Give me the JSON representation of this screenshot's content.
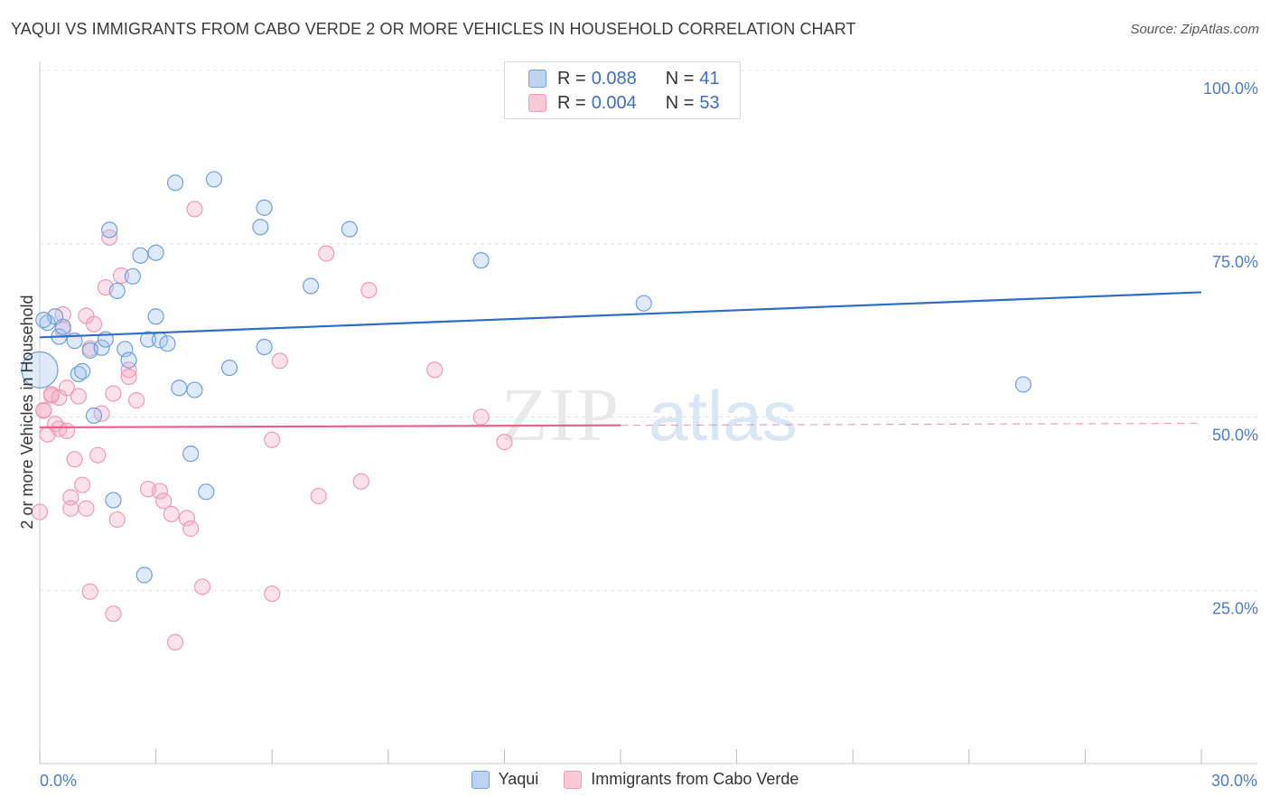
{
  "title": "YAQUI VS IMMIGRANTS FROM CABO VERDE 2 OR MORE VEHICLES IN HOUSEHOLD CORRELATION CHART",
  "source": "Source: ZipAtlas.com",
  "watermark": {
    "zip": "ZIP",
    "atlas": "atlas"
  },
  "legend": {
    "rows": [
      {
        "r_label": "R =",
        "r_value": "0.088",
        "n_label": "N =",
        "n_value": "41"
      },
      {
        "r_label": "R =",
        "r_value": "0.004",
        "n_label": "N =",
        "n_value": "53"
      }
    ]
  },
  "bottom_legend": [
    "Yaqui",
    "Immigrants from Cabo Verde"
  ],
  "chart_data": {
    "type": "scatter",
    "title": "YAQUI VS IMMIGRANTS FROM CABO VERDE 2 OR MORE VEHICLES IN HOUSEHOLD CORRELATION CHART",
    "xlabel": "",
    "ylabel": "2 or more Vehicles in Household",
    "xlim": [
      0,
      30
    ],
    "ylim": [
      0,
      100
    ],
    "x_tick_labels": [
      "0.0%",
      "30.0%"
    ],
    "y_ticks": [
      25,
      50,
      75,
      100
    ],
    "y_tick_labels": [
      "25.0%",
      "50.0%",
      "75.0%",
      "100.0%"
    ],
    "grid": "horizontal dashed",
    "legend_position": "top-center",
    "colors": {
      "yaqui": "#6f9fdc",
      "cabo_verde": "#f09ab5",
      "yaqui_line": "#2f6cc4",
      "cabo_line": "#e8628a"
    },
    "series": [
      {
        "name": "Yaqui",
        "r": 0.088,
        "n": 41,
        "trend": {
          "x": [
            0,
            30
          ],
          "y": [
            61.5,
            68.0
          ]
        },
        "points": [
          [
            0.0,
            56.8
          ],
          [
            0.2,
            63.6
          ],
          [
            0.4,
            64.5
          ],
          [
            0.5,
            61.6
          ],
          [
            0.6,
            63.0
          ],
          [
            0.9,
            61.0
          ],
          [
            1.0,
            56.2
          ],
          [
            1.1,
            56.6
          ],
          [
            1.3,
            59.6
          ],
          [
            1.4,
            50.2
          ],
          [
            1.6,
            60.0
          ],
          [
            1.7,
            61.2
          ],
          [
            1.8,
            77.0
          ],
          [
            1.9,
            38.0
          ],
          [
            2.0,
            68.2
          ],
          [
            2.2,
            59.8
          ],
          [
            2.3,
            58.2
          ],
          [
            2.4,
            70.3
          ],
          [
            2.6,
            73.3
          ],
          [
            2.7,
            27.2
          ],
          [
            2.8,
            61.2
          ],
          [
            3.0,
            64.5
          ],
          [
            3.0,
            73.7
          ],
          [
            3.1,
            61.1
          ],
          [
            3.3,
            60.6
          ],
          [
            3.5,
            83.8
          ],
          [
            3.6,
            54.2
          ],
          [
            3.9,
            44.7
          ],
          [
            4.0,
            53.9
          ],
          [
            4.3,
            39.2
          ],
          [
            4.5,
            84.3
          ],
          [
            4.9,
            57.1
          ],
          [
            5.7,
            77.4
          ],
          [
            5.8,
            80.2
          ],
          [
            5.8,
            60.1
          ],
          [
            7.0,
            68.9
          ],
          [
            8.0,
            77.1
          ],
          [
            11.4,
            72.6
          ],
          [
            15.6,
            66.4
          ],
          [
            25.4,
            54.7
          ],
          [
            0.1,
            64.0
          ]
        ]
      },
      {
        "name": "Immigrants from Cabo Verde",
        "r": 0.004,
        "n": 53,
        "trend": {
          "x": [
            0,
            15
          ],
          "y": [
            48.5,
            48.8
          ]
        },
        "points": [
          [
            0.0,
            36.3
          ],
          [
            0.1,
            50.9
          ],
          [
            0.2,
            47.5
          ],
          [
            0.3,
            53.1
          ],
          [
            0.3,
            53.3
          ],
          [
            0.4,
            49.0
          ],
          [
            0.5,
            52.8
          ],
          [
            0.5,
            48.3
          ],
          [
            0.6,
            64.8
          ],
          [
            0.6,
            62.6
          ],
          [
            0.7,
            48.0
          ],
          [
            0.7,
            54.2
          ],
          [
            0.8,
            38.4
          ],
          [
            0.8,
            36.8
          ],
          [
            0.9,
            43.9
          ],
          [
            1.0,
            53.0
          ],
          [
            1.1,
            40.2
          ],
          [
            1.2,
            36.8
          ],
          [
            1.2,
            64.6
          ],
          [
            1.3,
            59.9
          ],
          [
            1.3,
            24.8
          ],
          [
            1.4,
            63.4
          ],
          [
            1.5,
            44.5
          ],
          [
            1.6,
            50.5
          ],
          [
            1.7,
            68.7
          ],
          [
            1.8,
            75.9
          ],
          [
            1.9,
            53.4
          ],
          [
            1.9,
            21.6
          ],
          [
            2.0,
            35.2
          ],
          [
            2.1,
            70.4
          ],
          [
            2.3,
            56.8
          ],
          [
            2.3,
            55.8
          ],
          [
            2.5,
            52.4
          ],
          [
            2.8,
            39.6
          ],
          [
            3.1,
            39.3
          ],
          [
            3.2,
            37.9
          ],
          [
            3.4,
            36.0
          ],
          [
            3.5,
            17.5
          ],
          [
            3.8,
            35.4
          ],
          [
            3.9,
            33.9
          ],
          [
            4.0,
            80.0
          ],
          [
            4.2,
            25.5
          ],
          [
            6.0,
            46.7
          ],
          [
            6.0,
            24.5
          ],
          [
            6.2,
            58.1
          ],
          [
            7.2,
            38.6
          ],
          [
            7.4,
            73.6
          ],
          [
            8.3,
            40.7
          ],
          [
            8.5,
            68.3
          ],
          [
            10.2,
            56.8
          ],
          [
            11.4,
            50.0
          ],
          [
            12.0,
            46.4
          ],
          [
            0.1,
            51.0
          ]
        ]
      }
    ]
  }
}
